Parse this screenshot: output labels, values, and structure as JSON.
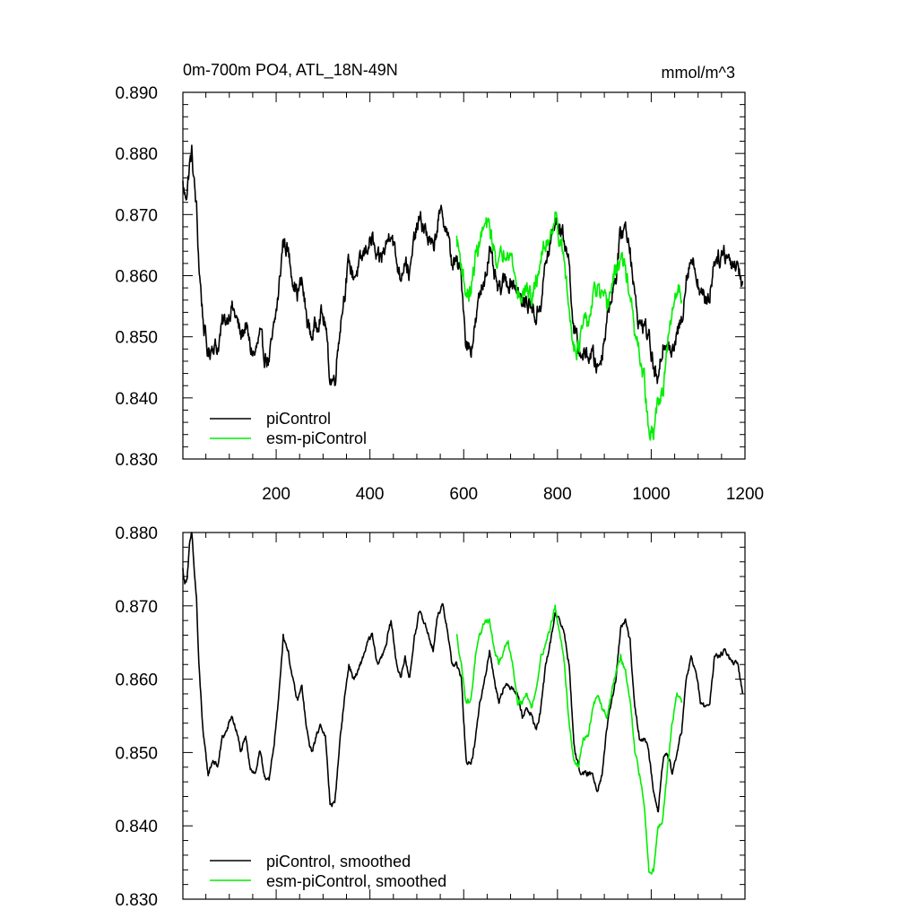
{
  "chart_data": [
    {
      "type": "line",
      "title": "0m-700m PO4, ATL_18N-49N",
      "units": "mmol/m^3",
      "xlim": [
        1,
        1200
      ],
      "ylim": [
        0.83,
        0.89
      ],
      "xticks": [
        200,
        400,
        600,
        800,
        1000,
        1200
      ],
      "yticks": [
        0.83,
        0.84,
        0.85,
        0.86,
        0.87,
        0.88,
        0.89
      ],
      "ytick_labels": [
        "0.830",
        "0.840",
        "0.850",
        "0.860",
        "0.870",
        "0.880",
        "0.890"
      ],
      "xtick_labels": [
        "200",
        "400",
        "600",
        "800",
        "1000",
        "1200"
      ],
      "legend": "bottom-left",
      "grid": false,
      "series": [
        {
          "name": "piControl",
          "color": "#000000",
          "noise": 0.0012,
          "x": [
            1,
            5,
            10,
            15,
            20,
            25,
            30,
            35,
            45,
            55,
            65,
            75,
            85,
            95,
            105,
            115,
            125,
            135,
            145,
            155,
            165,
            175,
            185,
            195,
            205,
            215,
            225,
            235,
            245,
            255,
            265,
            275,
            285,
            295,
            305,
            315,
            325,
            335,
            345,
            355,
            365,
            375,
            385,
            395,
            405,
            415,
            425,
            435,
            445,
            455,
            465,
            475,
            485,
            495,
            505,
            515,
            525,
            535,
            545,
            555,
            565,
            575,
            585,
            595,
            605,
            615,
            625,
            635,
            645,
            655,
            665,
            675,
            685,
            695,
            705,
            715,
            725,
            735,
            745,
            755,
            765,
            775,
            785,
            795,
            805,
            815,
            825,
            835,
            845,
            855,
            865,
            875,
            885,
            895,
            905,
            915,
            925,
            935,
            945,
            955,
            965,
            975,
            985,
            995,
            1005,
            1015,
            1025,
            1035,
            1045,
            1055,
            1065,
            1075,
            1085,
            1095,
            1105,
            1115,
            1125,
            1135,
            1145,
            1155,
            1165,
            1175,
            1185,
            1195
          ],
          "y": [
            0.875,
            0.873,
            0.874,
            0.878,
            0.88,
            0.875,
            0.871,
            0.862,
            0.852,
            0.847,
            0.849,
            0.848,
            0.852,
            0.853,
            0.855,
            0.853,
            0.85,
            0.852,
            0.848,
            0.847,
            0.85,
            0.847,
            0.846,
            0.851,
            0.857,
            0.866,
            0.864,
            0.86,
            0.857,
            0.859,
            0.853,
            0.85,
            0.852,
            0.854,
            0.852,
            0.843,
            0.843,
            0.851,
            0.857,
            0.862,
            0.86,
            0.861,
            0.863,
            0.865,
            0.866,
            0.862,
            0.863,
            0.865,
            0.868,
            0.863,
            0.86,
            0.863,
            0.86,
            0.866,
            0.869,
            0.868,
            0.866,
            0.864,
            0.869,
            0.87,
            0.867,
            0.862,
            0.862,
            0.86,
            0.849,
            0.848,
            0.852,
            0.857,
            0.86,
            0.864,
            0.86,
            0.857,
            0.859,
            0.859,
            0.859,
            0.858,
            0.855,
            0.856,
            0.855,
            0.853,
            0.856,
            0.862,
            0.865,
            0.869,
            0.868,
            0.866,
            0.862,
            0.851,
            0.848,
            0.847,
            0.847,
            0.847,
            0.845,
            0.847,
            0.853,
            0.857,
            0.86,
            0.867,
            0.868,
            0.865,
            0.856,
            0.852,
            0.852,
            0.85,
            0.845,
            0.842,
            0.849,
            0.85,
            0.847,
            0.85,
            0.853,
            0.86,
            0.863,
            0.861,
            0.857,
            0.856,
            0.857,
            0.863,
            0.863,
            0.864,
            0.863,
            0.862,
            0.862,
            0.858
          ]
        },
        {
          "name": "esm-piControl",
          "color": "#00ee00",
          "noise": 0.0012,
          "x": [
            585,
            595,
            605,
            615,
            625,
            635,
            645,
            655,
            665,
            675,
            685,
            695,
            705,
            715,
            725,
            735,
            745,
            755,
            765,
            775,
            785,
            795,
            805,
            815,
            825,
            835,
            845,
            855,
            865,
            875,
            885,
            895,
            905,
            915,
            925,
            935,
            945,
            955,
            965,
            975,
            985,
            995,
            1005,
            1015,
            1025,
            1035,
            1045,
            1055,
            1065
          ],
          "y": [
            0.866,
            0.862,
            0.857,
            0.857,
            0.863,
            0.866,
            0.868,
            0.868,
            0.864,
            0.862,
            0.864,
            0.865,
            0.862,
            0.857,
            0.857,
            0.858,
            0.856,
            0.859,
            0.863,
            0.865,
            0.867,
            0.87,
            0.866,
            0.862,
            0.854,
            0.849,
            0.848,
            0.852,
            0.852,
            0.856,
            0.858,
            0.856,
            0.855,
            0.858,
            0.861,
            0.863,
            0.861,
            0.857,
            0.85,
            0.847,
            0.843,
            0.834,
            0.834,
            0.84,
            0.841,
            0.848,
            0.854,
            0.858,
            0.857
          ]
        }
      ]
    },
    {
      "type": "line",
      "xlim": [
        1,
        1200
      ],
      "ylim": [
        0.83,
        0.88
      ],
      "xticks": [
        200,
        400,
        600,
        800,
        1000,
        1200
      ],
      "yticks": [
        0.83,
        0.84,
        0.85,
        0.86,
        0.87,
        0.88
      ],
      "ytick_labels": [
        "0.830",
        "0.840",
        "0.850",
        "0.860",
        "0.870",
        "0.880"
      ],
      "legend": "bottom-left",
      "grid": false,
      "series": [
        {
          "name": "piControl, smoothed",
          "color": "#000000",
          "noise": 0.0003,
          "x": [
            1,
            5,
            10,
            15,
            20,
            25,
            30,
            35,
            45,
            55,
            65,
            75,
            85,
            95,
            105,
            115,
            125,
            135,
            145,
            155,
            165,
            175,
            185,
            195,
            205,
            215,
            225,
            235,
            245,
            255,
            265,
            275,
            285,
            295,
            305,
            315,
            325,
            335,
            345,
            355,
            365,
            375,
            385,
            395,
            405,
            415,
            425,
            435,
            445,
            455,
            465,
            475,
            485,
            495,
            505,
            515,
            525,
            535,
            545,
            555,
            565,
            575,
            585,
            595,
            605,
            615,
            625,
            635,
            645,
            655,
            665,
            675,
            685,
            695,
            705,
            715,
            725,
            735,
            745,
            755,
            765,
            775,
            785,
            795,
            805,
            815,
            825,
            835,
            845,
            855,
            865,
            875,
            885,
            895,
            905,
            915,
            925,
            935,
            945,
            955,
            965,
            975,
            985,
            995,
            1005,
            1015,
            1025,
            1035,
            1045,
            1055,
            1065,
            1075,
            1085,
            1095,
            1105,
            1115,
            1125,
            1135,
            1145,
            1155,
            1165,
            1175,
            1185,
            1195
          ],
          "y": [
            0.875,
            0.873,
            0.874,
            0.878,
            0.88,
            0.875,
            0.871,
            0.862,
            0.852,
            0.847,
            0.849,
            0.848,
            0.852,
            0.853,
            0.855,
            0.853,
            0.85,
            0.852,
            0.848,
            0.847,
            0.85,
            0.847,
            0.846,
            0.851,
            0.857,
            0.866,
            0.864,
            0.86,
            0.857,
            0.859,
            0.853,
            0.85,
            0.852,
            0.854,
            0.852,
            0.843,
            0.843,
            0.851,
            0.857,
            0.862,
            0.86,
            0.861,
            0.863,
            0.865,
            0.866,
            0.862,
            0.863,
            0.865,
            0.868,
            0.863,
            0.86,
            0.863,
            0.86,
            0.866,
            0.869,
            0.868,
            0.866,
            0.864,
            0.869,
            0.87,
            0.867,
            0.862,
            0.862,
            0.86,
            0.849,
            0.848,
            0.852,
            0.857,
            0.86,
            0.864,
            0.86,
            0.857,
            0.859,
            0.859,
            0.859,
            0.858,
            0.855,
            0.856,
            0.855,
            0.853,
            0.856,
            0.862,
            0.865,
            0.869,
            0.868,
            0.866,
            0.862,
            0.851,
            0.848,
            0.847,
            0.847,
            0.847,
            0.845,
            0.847,
            0.853,
            0.857,
            0.86,
            0.867,
            0.868,
            0.865,
            0.856,
            0.852,
            0.852,
            0.85,
            0.845,
            0.842,
            0.849,
            0.85,
            0.847,
            0.85,
            0.853,
            0.86,
            0.863,
            0.861,
            0.857,
            0.856,
            0.857,
            0.863,
            0.863,
            0.864,
            0.863,
            0.862,
            0.862,
            0.858
          ]
        },
        {
          "name": "esm-piControl, smoothed",
          "color": "#00ee00",
          "noise": 0.0003,
          "x": [
            585,
            595,
            605,
            615,
            625,
            635,
            645,
            655,
            665,
            675,
            685,
            695,
            705,
            715,
            725,
            735,
            745,
            755,
            765,
            775,
            785,
            795,
            805,
            815,
            825,
            835,
            845,
            855,
            865,
            875,
            885,
            895,
            905,
            915,
            925,
            935,
            945,
            955,
            965,
            975,
            985,
            995,
            1005,
            1015,
            1025,
            1035,
            1045,
            1055,
            1065
          ],
          "y": [
            0.866,
            0.862,
            0.857,
            0.857,
            0.863,
            0.866,
            0.868,
            0.868,
            0.864,
            0.862,
            0.864,
            0.865,
            0.862,
            0.857,
            0.857,
            0.858,
            0.856,
            0.859,
            0.863,
            0.865,
            0.867,
            0.87,
            0.866,
            0.862,
            0.854,
            0.849,
            0.848,
            0.852,
            0.852,
            0.856,
            0.858,
            0.856,
            0.855,
            0.858,
            0.861,
            0.863,
            0.861,
            0.857,
            0.85,
            0.847,
            0.843,
            0.834,
            0.834,
            0.84,
            0.841,
            0.848,
            0.854,
            0.858,
            0.857
          ]
        }
      ]
    }
  ]
}
